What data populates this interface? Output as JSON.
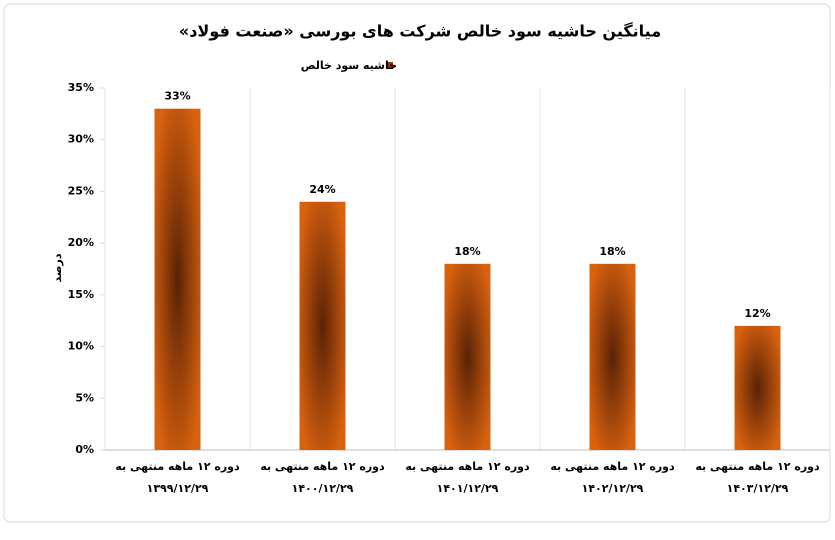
{
  "chart_data": {
    "type": "bar",
    "title": "میانگین حاشیه سود خالص شرکت های بورسی «صنعت فولاد»",
    "y_label": "درصد",
    "categories": [
      [
        "دوره ۱۲ ماهه منتهی به",
        "۱۳۹۹/۱۲/۲۹"
      ],
      [
        "دوره ۱۲ ماهه منتهی به",
        "۱۴۰۰/۱۲/۲۹"
      ],
      [
        "دوره ۱۲ ماهه منتهی به",
        "۱۴۰۱/۱۲/۲۹"
      ],
      [
        "دوره ۱۲ ماهه منتهی به",
        "۱۴۰۲/۱۲/۲۹"
      ],
      [
        "دوره ۱۲ ماهه منتهی به",
        "۱۴۰۳/۱۲/۲۹"
      ]
    ],
    "series": [
      {
        "name": "حاشیه سود خالص",
        "color": "#d9620f",
        "values": [
          33,
          24,
          18,
          18,
          12
        ],
        "value_labels": [
          "33%",
          "24%",
          "18%",
          "18%",
          "12%"
        ]
      }
    ],
    "ylim": [
      0,
      35
    ],
    "yticks": [
      {
        "value": 0,
        "label": "0%"
      },
      {
        "value": 5,
        "label": "5%"
      },
      {
        "value": 10,
        "label": "10%"
      },
      {
        "value": 15,
        "label": "15%"
      },
      {
        "value": 20,
        "label": "20%"
      },
      {
        "value": 25,
        "label": "25%"
      },
      {
        "value": 30,
        "label": "30%"
      },
      {
        "value": 35,
        "label": "35%"
      }
    ],
    "legend": "top"
  }
}
